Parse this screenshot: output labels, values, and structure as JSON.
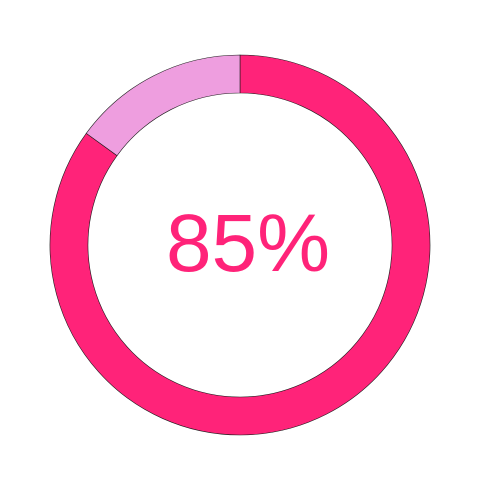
{
  "chart_data": {
    "type": "pie",
    "style": "donut",
    "title": "",
    "slices": [
      {
        "value": 85,
        "color": "#ff2379"
      },
      {
        "value": 15,
        "color": "#ee9edf"
      }
    ],
    "center_label": "85%",
    "center_label_color": "#ff2379",
    "start_angle": "top",
    "direction": "clockwise"
  }
}
